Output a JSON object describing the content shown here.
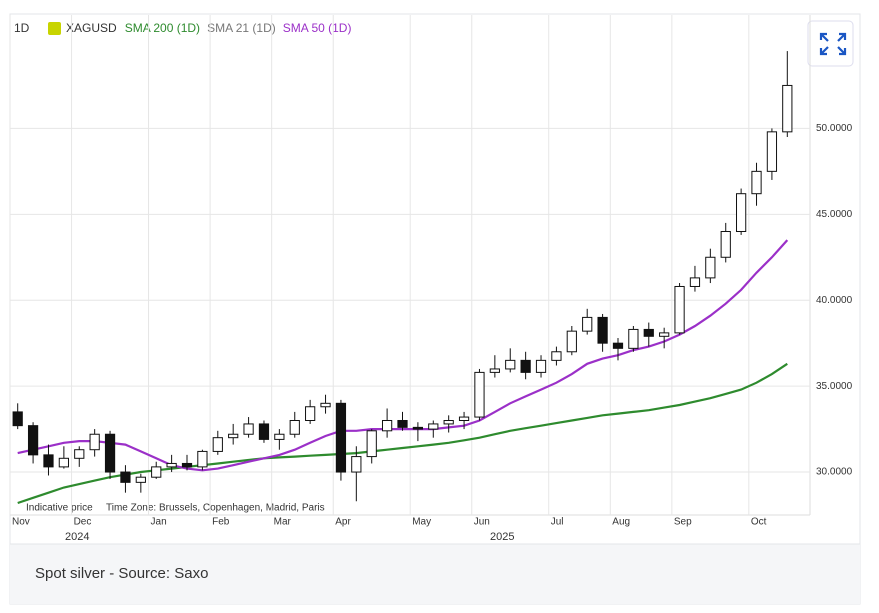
{
  "chart_data": {
    "type": "candlestick",
    "interval": "1D",
    "symbol": "XAGUSD",
    "categories": [
      "Nov",
      null,
      null,
      null,
      "Dec",
      null,
      null,
      null,
      null,
      "Jan",
      null,
      null,
      null,
      "Feb",
      null,
      null,
      null,
      "Mar",
      null,
      null,
      null,
      "Apr",
      null,
      null,
      null,
      null,
      "May",
      null,
      null,
      null,
      "Jun",
      null,
      null,
      null,
      null,
      "Jul",
      null,
      null,
      null,
      "Aug",
      null,
      null,
      null,
      "Sep",
      null,
      null,
      null,
      null,
      "Oct",
      null,
      null
    ],
    "year_labels": [
      "2024",
      "2025"
    ],
    "series": [
      {
        "name": "XAGUSD",
        "up_color": "#ffffff",
        "down_color": "#111111",
        "open": [
          33.5,
          32.7,
          31,
          30.3,
          30.8,
          31.3,
          32.2,
          30,
          29.4,
          29.7,
          30.3,
          30.5,
          30.3,
          31.2,
          32,
          32.2,
          32.8,
          31.9,
          32.2,
          33,
          33.8,
          34,
          30,
          30.9,
          32.4,
          33,
          32.6,
          32.5,
          32.8,
          33,
          33.2,
          35.8,
          36,
          36.5,
          35.8,
          36.5,
          37,
          38.2,
          39,
          37.5,
          37.2,
          38.3,
          37.9,
          38.1,
          40.8,
          41.3,
          42.5,
          44,
          46.2,
          47.5,
          49.8
        ],
        "high": [
          34,
          32.9,
          31.6,
          31.5,
          31.5,
          32.5,
          32.4,
          30.4,
          29.9,
          30.6,
          31,
          31,
          31.3,
          32.4,
          32.8,
          33.2,
          33,
          32.5,
          33.5,
          34.2,
          34.5,
          34.2,
          31.5,
          32.5,
          33.7,
          33.5,
          32.9,
          33,
          33.3,
          33.5,
          36,
          36.8,
          37.2,
          37,
          36.8,
          37.3,
          38.5,
          39.5,
          39.2,
          37.8,
          38.5,
          38.7,
          38.4,
          41,
          42,
          43,
          44.5,
          46.5,
          48,
          50,
          54.5
        ],
        "low": [
          32.5,
          30.5,
          29.8,
          30.2,
          30.3,
          30.9,
          29.6,
          28.8,
          28.8,
          29.6,
          30,
          30.1,
          30.1,
          31,
          31.6,
          32,
          31.7,
          31.3,
          32,
          32.8,
          33.4,
          29.5,
          28.3,
          30.5,
          32,
          32.4,
          31.8,
          32,
          32.3,
          32.5,
          33,
          35.5,
          35.8,
          35.4,
          35.5,
          36.2,
          36.8,
          38,
          37,
          36.5,
          37,
          37.3,
          37.2,
          38,
          40.5,
          41,
          42.2,
          43.8,
          45.5,
          47,
          49.5
        ],
        "close": [
          32.7,
          31,
          30.3,
          30.8,
          31.3,
          32.2,
          30,
          29.4,
          29.7,
          30.3,
          30.5,
          30.3,
          31.2,
          32,
          32.2,
          32.8,
          31.9,
          32.2,
          33,
          33.8,
          34,
          30,
          30.9,
          32.4,
          33,
          32.6,
          32.5,
          32.8,
          33,
          33.2,
          35.8,
          36,
          36.5,
          35.8,
          36.5,
          37,
          38.2,
          39,
          37.5,
          37.2,
          38.3,
          37.9,
          38.1,
          40.8,
          41.3,
          42.5,
          44,
          46.2,
          47.5,
          49.8,
          52.5
        ]
      }
    ],
    "indicators": [
      {
        "name": "SMA 200 (1D)",
        "color": "#2e8b2e",
        "values": [
          28.2,
          28.5,
          28.8,
          29.1,
          29.3,
          29.5,
          29.7,
          29.85,
          30,
          30.1,
          30.2,
          30.3,
          30.4,
          30.5,
          30.6,
          30.7,
          30.8,
          30.85,
          30.9,
          30.95,
          31,
          31.05,
          31.1,
          31.2,
          31.3,
          31.4,
          31.5,
          31.6,
          31.7,
          31.85,
          32,
          32.2,
          32.4,
          32.55,
          32.7,
          32.85,
          33,
          33.15,
          33.3,
          33.4,
          33.5,
          33.6,
          33.75,
          33.9,
          34.1,
          34.3,
          34.55,
          34.8,
          35.2,
          35.7,
          36.3
        ]
      },
      {
        "name": "SMA 21 (1D)",
        "color": "#777777"
      },
      {
        "name": "SMA 50 (1D)",
        "color": "#9b30c8",
        "values": [
          31.1,
          31.3,
          31.5,
          31.7,
          31.8,
          31.8,
          31.7,
          31.6,
          31.2,
          30.8,
          30.4,
          30.2,
          30.1,
          30.2,
          30.4,
          30.6,
          30.8,
          31,
          31.3,
          31.7,
          32.1,
          32.4,
          32.4,
          32.5,
          32.5,
          32.5,
          32.5,
          32.5,
          32.6,
          32.7,
          33,
          33.5,
          34,
          34.4,
          34.8,
          35.2,
          35.7,
          36.3,
          36.6,
          36.8,
          37.1,
          37.3,
          37.6,
          38,
          38.5,
          39.1,
          39.8,
          40.6,
          41.6,
          42.5,
          43.5
        ]
      }
    ],
    "ylim": [
      27.5,
      56.6
    ],
    "yticks": [
      {
        "value": 30,
        "label": "30.0000"
      },
      {
        "value": 35,
        "label": "35.0000"
      },
      {
        "value": 40,
        "label": "40.0000"
      },
      {
        "value": 45,
        "label": "45.0000"
      },
      {
        "value": 50,
        "label": "50.0000"
      }
    ],
    "grid": true,
    "notes": [
      "Indicative price",
      "Time Zone: Brussels, Copenhagen, Madrid, Paris"
    ],
    "caption": "Spot silver - Source: Saxo"
  }
}
